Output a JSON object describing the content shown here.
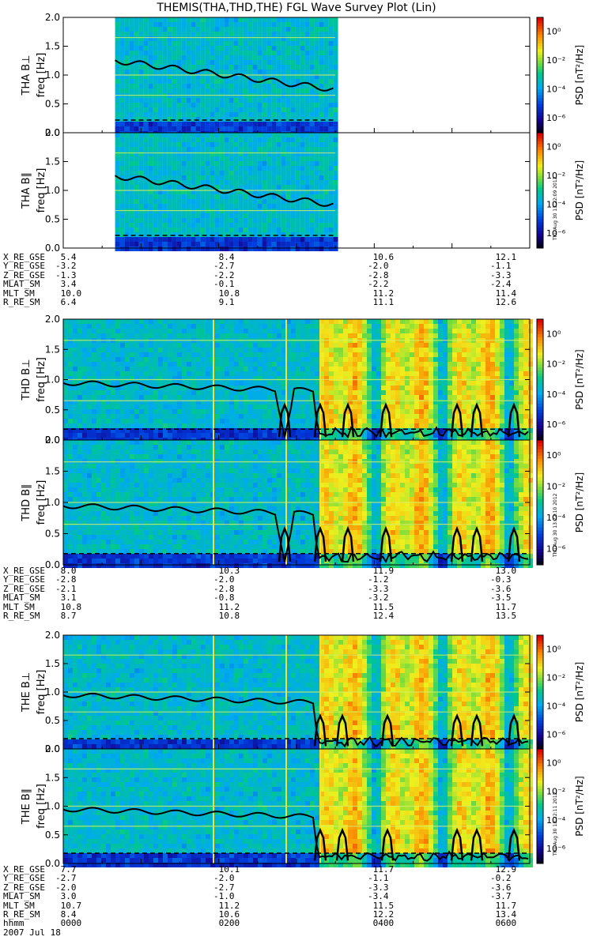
{
  "title": "THEMIS(THA,THD,THE) FGL Wave Survey Plot (Lin)",
  "colorbar": {
    "label": "PSD [nT²/Hz]",
    "ticks": [
      "10⁰",
      "10⁻²",
      "10⁻⁴",
      "10⁻⁶"
    ]
  },
  "stamps": [
    "Thu Aug 30 13:22:09 2012",
    "Thu Aug 30 13:22:10 2012",
    "Thu Aug 30 13:22:11 2012"
  ],
  "chart_data": [
    {
      "type": "heatmap",
      "probe": "THA",
      "component": "B⊥",
      "ylabel_probe": "THA B⊥",
      "ylabel_unit": "freq [Hz]",
      "ylim": [
        0,
        2
      ],
      "yticks": [
        "0.0",
        "0.5",
        "1.0",
        "1.5",
        "2.0"
      ],
      "xlim": [
        "0000",
        "0600"
      ],
      "data_coverage": [
        "0040",
        "0330"
      ],
      "colorscale": "log PSD 1e-6 to 1e0",
      "stamp": ""
    },
    {
      "type": "heatmap",
      "probe": "THA",
      "component": "B∥",
      "ylabel_probe": "THA B∥",
      "ylabel_unit": "freq [Hz]",
      "ylim": [
        0,
        2
      ],
      "yticks": [
        "0.0",
        "0.5",
        "1.0",
        "1.5",
        "2.0"
      ],
      "xlim": [
        "0000",
        "0600"
      ],
      "data_coverage": [
        "0040",
        "0330"
      ],
      "colorscale": "log PSD 1e-6 to 1e0",
      "stamp": "Thu Aug 30 13:22:09 2012"
    },
    {
      "type": "heatmap",
      "probe": "THD",
      "component": "B⊥",
      "ylabel_probe": "THD B⊥",
      "ylabel_unit": "freq [Hz]",
      "ylim": [
        0,
        2
      ],
      "yticks": [
        "0.0",
        "0.5",
        "1.0",
        "1.5",
        "2.0"
      ],
      "xlim": [
        "0000",
        "0600"
      ],
      "data_coverage": [
        "0000",
        "0600"
      ],
      "colorscale": "log PSD 1e-6 to 1e0",
      "stamp": ""
    },
    {
      "type": "heatmap",
      "probe": "THD",
      "component": "B∥",
      "ylabel_probe": "THD B∥",
      "ylabel_unit": "freq [Hz]",
      "ylim": [
        0,
        2
      ],
      "yticks": [
        "0.0",
        "0.5",
        "1.0",
        "1.5",
        "2.0"
      ],
      "xlim": [
        "0000",
        "0600"
      ],
      "data_coverage": [
        "0000",
        "0600"
      ],
      "colorscale": "log PSD 1e-6 to 1e0",
      "stamp": "Thu Aug 30 13:22:10 2012"
    },
    {
      "type": "heatmap",
      "probe": "THE",
      "component": "B⊥",
      "ylabel_probe": "THE B⊥",
      "ylabel_unit": "freq [Hz]",
      "ylim": [
        0,
        2
      ],
      "yticks": [
        "0.0",
        "0.5",
        "1.0",
        "1.5",
        "2.0"
      ],
      "xlim": [
        "0000",
        "0600"
      ],
      "data_coverage": [
        "0000",
        "0600"
      ],
      "colorscale": "log PSD 1e-6 to 1e0",
      "stamp": ""
    },
    {
      "type": "heatmap",
      "probe": "THE",
      "component": "B∥",
      "ylabel_probe": "THE B∥",
      "ylabel_unit": "freq [Hz]",
      "ylim": [
        0,
        2
      ],
      "yticks": [
        "0.0",
        "0.5",
        "1.0",
        "1.5",
        "2.0"
      ],
      "xlim": [
        "0000",
        "0600"
      ],
      "data_coverage": [
        "0000",
        "0600"
      ],
      "colorscale": "log PSD 1e-6 to 1e0",
      "stamp": "Thu Aug 30 13:22:11 2012"
    }
  ],
  "orbit_tables": [
    {
      "probe": "THA",
      "rows": [
        {
          "label": "X_RE_GSE",
          "values": [
            "5.4",
            "8.4",
            "10.6",
            "12.1"
          ]
        },
        {
          "label": "Y_RE_GSE",
          "values": [
            "-3.2",
            "-2.7",
            "-2.0",
            "-1.1"
          ]
        },
        {
          "label": "Z_RE_GSE",
          "values": [
            "-1.3",
            "-2.2",
            "-2.8",
            "-3.3"
          ]
        },
        {
          "label": "MLAT_SM",
          "values": [
            "3.4",
            "-0.1",
            "-2.2",
            "-2.4"
          ]
        },
        {
          "label": "MLT_SM",
          "values": [
            "10.0",
            "10.8",
            "11.2",
            "11.4"
          ]
        },
        {
          "label": "R_RE_SM",
          "values": [
            "6.4",
            "9.1",
            "11.1",
            "12.6"
          ]
        }
      ]
    },
    {
      "probe": "THD",
      "rows": [
        {
          "label": "X_RE_GSE",
          "values": [
            "8.0",
            "10.3",
            "11.9",
            "13.0"
          ]
        },
        {
          "label": "Y_RE_GSE",
          "values": [
            "-2.8",
            "-2.0",
            "-1.2",
            "-0.3"
          ]
        },
        {
          "label": "Z_RE_GSE",
          "values": [
            "-2.1",
            "-2.8",
            "-3.3",
            "-3.6"
          ]
        },
        {
          "label": "MLAT_SM",
          "values": [
            "3.1",
            "-0.8",
            "-3.2",
            "-3.5"
          ]
        },
        {
          "label": "MLT_SM",
          "values": [
            "10.8",
            "11.2",
            "11.5",
            "11.7"
          ]
        },
        {
          "label": "R_RE_SM",
          "values": [
            "8.7",
            "10.8",
            "12.4",
            "13.5"
          ]
        }
      ]
    },
    {
      "probe": "THE",
      "rows": [
        {
          "label": "X_RE_GSE",
          "values": [
            "7.7",
            "10.1",
            "11.7",
            "12.9"
          ]
        },
        {
          "label": "Y_RE_GSE",
          "values": [
            "-2.7",
            "-2.0",
            "-1.1",
            "-0.2"
          ]
        },
        {
          "label": "Z_RE_GSE",
          "values": [
            "-2.0",
            "-2.7",
            "-3.3",
            "-3.6"
          ]
        },
        {
          "label": "MLAT_SM",
          "values": [
            "3.0",
            "-1.0",
            "-3.4",
            "-3.7"
          ]
        },
        {
          "label": "MLT_SM",
          "values": [
            "10.7",
            "11.2",
            "11.5",
            "11.7"
          ]
        },
        {
          "label": "R_RE_SM",
          "values": [
            "8.4",
            "10.6",
            "12.2",
            "13.4"
          ]
        },
        {
          "label": "hhmm",
          "values": [
            "0000",
            "0200",
            "0400",
            "0600"
          ]
        }
      ]
    }
  ],
  "date_label": "2007 Jul 18"
}
